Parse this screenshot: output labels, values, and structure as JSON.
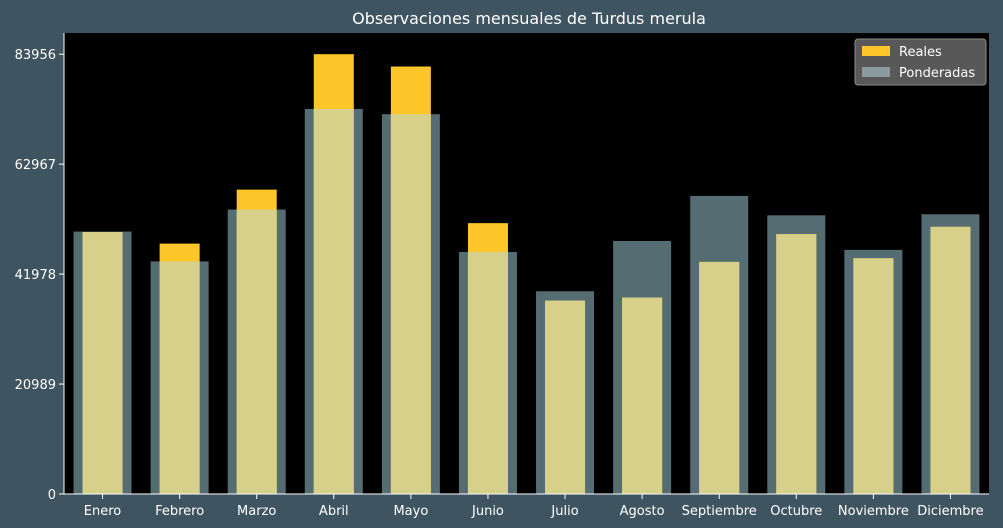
{
  "chart_data": {
    "type": "bar",
    "title": "Observaciones mensuales de Turdus merula",
    "xlabel": "",
    "ylabel": "",
    "categories": [
      "Enero",
      "Febrero",
      "Marzo",
      "Abril",
      "Mayo",
      "Junio",
      "Julio",
      "Agosto",
      "Septiembre",
      "Octubre",
      "Noviembre",
      "Diciembre"
    ],
    "series": [
      {
        "name": "Reales",
        "color": "#ffc62a",
        "values": [
          50000,
          47800,
          58100,
          83956,
          81600,
          51700,
          36900,
          37500,
          44300,
          49600,
          45000,
          51000
        ]
      },
      {
        "name": "Ponderadas",
        "color": "#8a9aa0",
        "values": [
          50100,
          44400,
          54300,
          73500,
          72500,
          46200,
          38700,
          48300,
          56900,
          53200,
          46600,
          53400
        ]
      }
    ],
    "ylim": [
      0,
      88000
    ],
    "yticks": [
      0,
      20989,
      41978,
      62967,
      83956
    ],
    "grid": false,
    "legend": "top-right",
    "colors": {
      "background": "#3f5461",
      "plot_area": "#000000",
      "overlap": "#d6d08a",
      "ponderadas_visible": "#566c73",
      "text": "#ffffff"
    }
  }
}
